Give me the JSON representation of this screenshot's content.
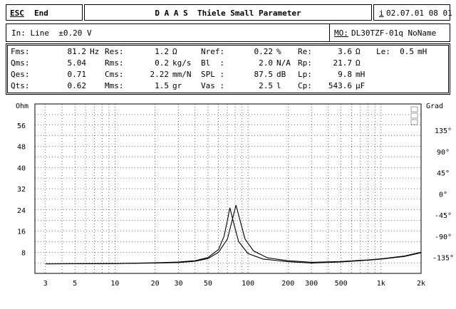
{
  "header": {
    "esc": "ESC",
    "end": "End",
    "title": "D A A S  Thiele Small Parameter",
    "date_key": "i",
    "date": "02.07.01 08 01"
  },
  "input_bar": {
    "input": "In: Line  ±0.20 V",
    "mo_label": "MO:",
    "mo_value": "DL30TZF-01q NoName"
  },
  "params": [
    [
      "Fms:",
      "81.2",
      "Hz",
      "Res:",
      "1.2",
      "Ω",
      "Nref:",
      "0.22",
      "%",
      "Re:",
      "3.6",
      "Ω",
      "Le:",
      "0.5",
      "mH"
    ],
    [
      "Qms:",
      "5.04",
      "",
      "Rms:",
      "0.2",
      "kg/s",
      "Bl  :",
      "2.0",
      "N/A",
      "Rp:",
      "21.7",
      "Ω",
      "",
      "",
      ""
    ],
    [
      "Qes:",
      "0.71",
      "",
      "Cms:",
      "2.22",
      "mm/N",
      "SPL :",
      "87.5",
      "dB",
      "Lp:",
      "9.8",
      "mH",
      "",
      "",
      ""
    ],
    [
      "Qts:",
      "0.62",
      "",
      "Mms:",
      "1.5",
      "gr",
      "Vas :",
      "2.5",
      "l",
      "Cp:",
      "543.6",
      "µF",
      "",
      "",
      ""
    ]
  ],
  "chart_data": {
    "type": "line",
    "xscale": "log",
    "xlim": [
      2.5,
      2000
    ],
    "x_ticks": [
      "3",
      "5",
      "10",
      "20",
      "30",
      "50",
      "100",
      "200",
      "300",
      "500",
      "1k",
      "2k"
    ],
    "ylabel_left": "Ohm",
    "ylabel_right": "Grad",
    "ylim": [
      0,
      64
    ],
    "y_ticks": [
      "8",
      "16",
      "24",
      "32",
      "40",
      "48",
      "56"
    ],
    "y2_ticks": [
      "-135°",
      "-90°",
      "-45°",
      "0°",
      "45°",
      "90°",
      "135°"
    ],
    "series": [
      {
        "points": [
          [
            3,
            3.6
          ],
          [
            10,
            3.7
          ],
          [
            20,
            3.9
          ],
          [
            30,
            4.1
          ],
          [
            40,
            4.6
          ],
          [
            50,
            5.6
          ],
          [
            60,
            8
          ],
          [
            70,
            13
          ],
          [
            76,
            20
          ],
          [
            81.2,
            25.8
          ],
          [
            86,
            21
          ],
          [
            95,
            13
          ],
          [
            110,
            8.5
          ],
          [
            140,
            5.9
          ],
          [
            200,
            4.8
          ],
          [
            300,
            4.2
          ],
          [
            500,
            4.5
          ],
          [
            800,
            5.1
          ],
          [
            1000,
            5.5
          ],
          [
            1500,
            6.6
          ],
          [
            2000,
            8
          ]
        ]
      },
      {
        "points": [
          [
            3,
            3.6
          ],
          [
            10,
            3.7
          ],
          [
            20,
            4
          ],
          [
            30,
            4.3
          ],
          [
            40,
            4.8
          ],
          [
            50,
            6
          ],
          [
            60,
            9
          ],
          [
            66,
            14
          ],
          [
            70,
            20
          ],
          [
            73,
            24.8
          ],
          [
            78,
            19
          ],
          [
            85,
            12
          ],
          [
            100,
            7.5
          ],
          [
            130,
            5.4
          ],
          [
            200,
            4.4
          ],
          [
            300,
            3.9
          ],
          [
            500,
            4.3
          ],
          [
            800,
            5
          ],
          [
            1000,
            5.4
          ],
          [
            1500,
            6.4
          ],
          [
            2000,
            7.8
          ]
        ]
      }
    ]
  }
}
